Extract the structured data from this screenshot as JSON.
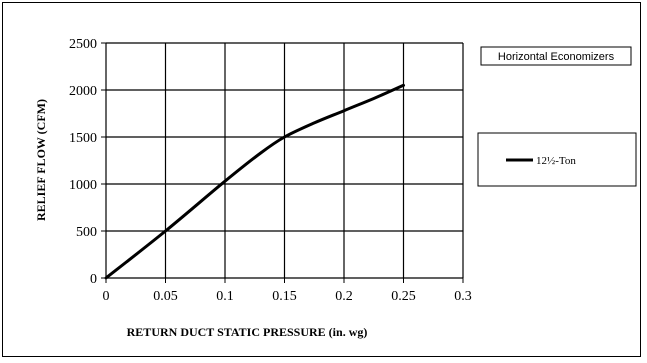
{
  "chart_data": {
    "type": "line",
    "subtitle": "Horizontal Economizers",
    "xlabel": "RETURN DUCT STATIC PRESSURE  (in. wg)",
    "ylabel": "RELIEF FLOW (CFM)",
    "xlim": [
      0,
      0.3
    ],
    "ylim": [
      0,
      2500
    ],
    "x_ticks": [
      "0",
      "0.05",
      "0.1",
      "0.15",
      "0.2",
      "0.25",
      "0.3"
    ],
    "y_ticks": [
      "0",
      "500",
      "1000",
      "1500",
      "2000",
      "2500"
    ],
    "x_tick_values": [
      0,
      0.05,
      0.1,
      0.15,
      0.2,
      0.25,
      0.3
    ],
    "y_tick_values": [
      0,
      500,
      1000,
      1500,
      2000,
      2500
    ],
    "grid": true,
    "legend_position": "right",
    "series": [
      {
        "name": "12½-Ton",
        "color": "#000000",
        "x": [
          0,
          0.05,
          0.1,
          0.13,
          0.15,
          0.175,
          0.2,
          0.225,
          0.25
        ],
        "values": [
          0,
          500,
          1030,
          1330,
          1500,
          1650,
          1780,
          1910,
          2050
        ]
      }
    ]
  }
}
